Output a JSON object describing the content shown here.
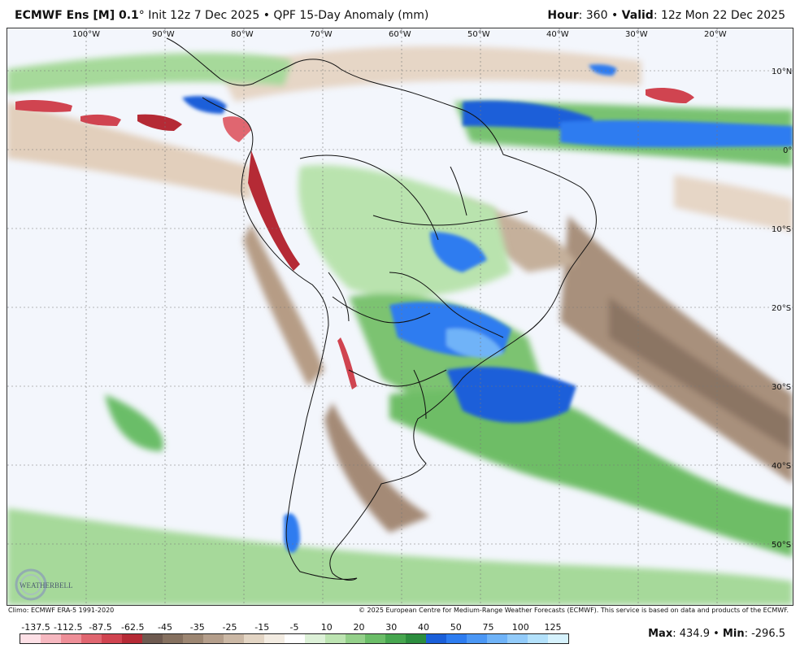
{
  "header": {
    "model": "ECMWF Ens [M] 0.1",
    "degree": "°",
    "init": "Init 12z 7 Dec 2025",
    "bullet": "•",
    "product": "QPF 15-Day Anomaly (mm)",
    "hour_label": "Hour",
    "hour_value": ": 360",
    "valid_label": "Valid",
    "valid_value": ": 12z Mon 22 Dec 2025"
  },
  "map": {
    "lon_labels": [
      "100°W",
      "90°W",
      "80°W",
      "70°W",
      "60°W",
      "50°W",
      "40°W",
      "30°W",
      "20°W"
    ],
    "lat_labels": [
      "10°N",
      "0°",
      "10°S",
      "20°S",
      "30°S",
      "40°S",
      "50°S"
    ],
    "logo_text": "WEATHERBELL"
  },
  "footer": {
    "climo": "Climo: ECMWF ERA-5 1991-2020",
    "copyright": "© 2025 European Centre for Medium-Range Weather Forecasts (ECMWF). This service is based on data and products of the ECMWF.",
    "max_label": "Max",
    "max_value": ": 434.9",
    "min_label": "Min",
    "min_value": ": -296.5",
    "sep": "•"
  },
  "legend": {
    "ticks": [
      "-137.5",
      "-112.5",
      "-87.5",
      "-62.5",
      "-45",
      "-35",
      "-25",
      "-15",
      "-5",
      "10",
      "20",
      "30",
      "40",
      "50",
      "75",
      "100",
      "125"
    ],
    "colors": [
      "#fde0e6",
      "#f6b8c0",
      "#ee8f98",
      "#e06670",
      "#d04450",
      "#b52a35",
      "#6e5a50",
      "#85705f",
      "#9c8672",
      "#b49e8b",
      "#cbb8a5",
      "#e3d5c4",
      "#f3ece2",
      "#ffffff",
      "#ddf1d8",
      "#bde4b2",
      "#94d08a",
      "#6bbd68",
      "#47a64f",
      "#2c8d3e",
      "#1a5fd9",
      "#2d7cf0",
      "#4b97f5",
      "#6fb3f8",
      "#92cbfa",
      "#b3e1fb",
      "#d6f2fd"
    ]
  }
}
